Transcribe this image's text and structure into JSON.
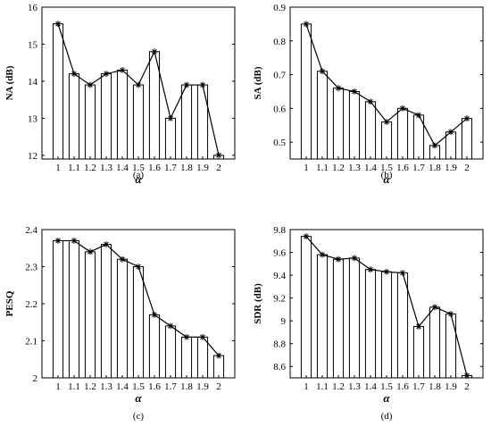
{
  "chart_data": [
    {
      "type": "bar",
      "overlay": "line",
      "marker": "asterisk",
      "panel_label": "(a)",
      "xlabel": "α",
      "ylabel": "NA (dB)",
      "categories": [
        "1",
        "1.1",
        "1.2",
        "1.3",
        "1.4",
        "1.5",
        "1.6",
        "1.7",
        "1.8",
        "1.9",
        "2"
      ],
      "values": [
        15.55,
        14.2,
        13.9,
        14.2,
        14.3,
        13.9,
        14.8,
        13.0,
        13.9,
        13.9,
        12.0
      ],
      "ylim": [
        11.9,
        16
      ],
      "yticks": [
        12,
        13,
        14,
        15,
        16
      ],
      "ytick_labels": [
        "12",
        "13",
        "14",
        "15",
        "16"
      ]
    },
    {
      "type": "bar",
      "overlay": "line",
      "marker": "asterisk",
      "panel_label": "(b)",
      "xlabel": "α",
      "ylabel": "SA (dB)",
      "categories": [
        "1",
        "1.1",
        "1.2",
        "1.3",
        "1.4",
        "1.5",
        "1.6",
        "1.7",
        "1.8",
        "1.9",
        "2"
      ],
      "values": [
        0.85,
        0.71,
        0.66,
        0.65,
        0.62,
        0.56,
        0.6,
        0.58,
        0.49,
        0.53,
        0.57
      ],
      "ylim": [
        0.45,
        0.9
      ],
      "yticks": [
        0.5,
        0.6,
        0.7,
        0.8,
        0.9
      ],
      "ytick_labels": [
        "0.5",
        "0.6",
        "0.7",
        "0.8",
        "0.9"
      ]
    },
    {
      "type": "bar",
      "overlay": "line",
      "marker": "asterisk",
      "panel_label": "(c)",
      "xlabel": "α",
      "ylabel": "PESQ",
      "categories": [
        "1",
        "1.1",
        "1.2",
        "1.3",
        "1.4",
        "1.5",
        "1.6",
        "1.7",
        "1.8",
        "1.9",
        "2"
      ],
      "values": [
        2.37,
        2.37,
        2.34,
        2.36,
        2.32,
        2.3,
        2.17,
        2.14,
        2.11,
        2.11,
        2.06
      ],
      "ylim": [
        2.0,
        2.4
      ],
      "yticks": [
        2.0,
        2.1,
        2.2,
        2.3,
        2.4
      ],
      "ytick_labels": [
        "2",
        "2.1",
        "2.2",
        "2.3",
        "2.4"
      ]
    },
    {
      "type": "bar",
      "overlay": "line",
      "marker": "asterisk",
      "panel_label": "(d)",
      "xlabel": "α",
      "ylabel": "SDR (dB)",
      "categories": [
        "1",
        "1.1",
        "1.2",
        "1.3",
        "1.4",
        "1.5",
        "1.6",
        "1.7",
        "1.8",
        "1.9",
        "2"
      ],
      "values": [
        9.74,
        9.58,
        9.54,
        9.55,
        9.45,
        9.43,
        9.42,
        8.95,
        9.12,
        9.06,
        8.52
      ],
      "ylim": [
        8.5,
        9.8
      ],
      "yticks": [
        8.6,
        8.8,
        9.0,
        9.2,
        9.4,
        9.6,
        9.8
      ],
      "ytick_labels": [
        "8.6",
        "8.8",
        "9",
        "9.2",
        "9.4",
        "9.6",
        "9.8"
      ]
    }
  ]
}
